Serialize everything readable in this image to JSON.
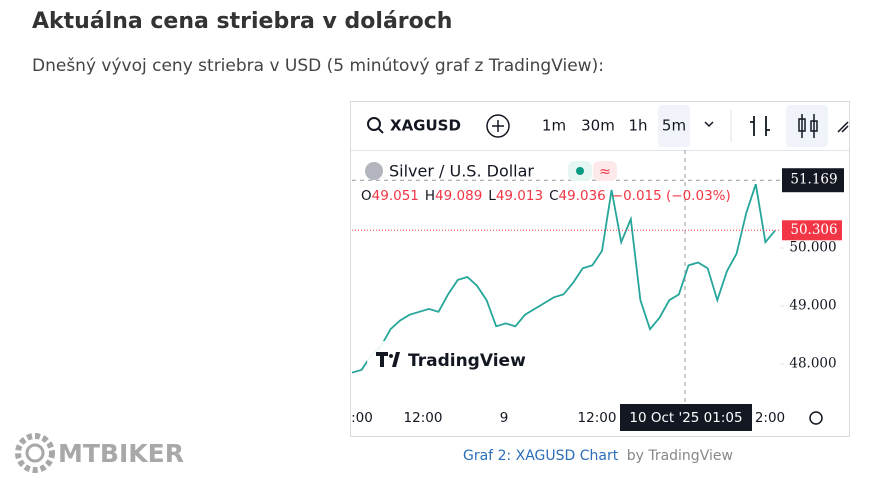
{
  "header": {
    "title": "Aktuálna cena striebra v dolároch",
    "subtitle": "Dnešný vývoj ceny striebra v USD (5 minútový graf z TradingView):"
  },
  "widget": {
    "symbol": "XAGUSD",
    "intervals": [
      "1m",
      "30m",
      "1h",
      "5m"
    ],
    "active_interval_index": 3,
    "legend_title": "Silver / U.S. Dollar",
    "legend_badge": "≈",
    "ohlc": [
      {
        "label": "O",
        "value": "49.051"
      },
      {
        "label": "H",
        "value": "49.089"
      },
      {
        "label": "L",
        "value": "49.013"
      },
      {
        "label": "C",
        "value": "49.036"
      }
    ],
    "change": "−0.015 (−0.03%)",
    "watermark": "TradingView"
  },
  "chart_data": {
    "type": "line",
    "color": "#26a69a",
    "values": [
      47.85,
      47.9,
      48.15,
      48.3,
      48.6,
      48.75,
      48.85,
      48.9,
      48.95,
      48.9,
      49.2,
      49.45,
      49.5,
      49.35,
      49.1,
      48.65,
      48.7,
      48.65,
      48.85,
      48.95,
      49.05,
      49.15,
      49.2,
      49.4,
      49.65,
      49.7,
      49.95,
      51.0,
      50.1,
      50.5,
      49.1,
      48.6,
      48.8,
      49.1,
      49.2,
      49.7,
      49.75,
      49.65,
      49.1,
      49.6,
      49.9,
      50.6,
      51.1,
      50.1,
      50.3
    ],
    "ylim": [
      47.38,
      51.69
    ],
    "yticks": [
      {
        "value": 48,
        "label": "48.000"
      },
      {
        "value": 49,
        "label": "49.000"
      },
      {
        "value": 50,
        "label": "50.000"
      }
    ],
    "x_labels": [
      ":00",
      "12:00",
      "9",
      "12:00",
      "2:00"
    ],
    "crosshair_time": "10 Oct '25  01:05",
    "crosshair_price": {
      "value": 51.169,
      "label": "51.169"
    },
    "last_price": {
      "value": 50.306,
      "label": "50.306"
    }
  },
  "caption": {
    "link": "Graf 2: XAGUSD Chart",
    "suffix": "by TradingView"
  },
  "brand": "MTBIKER"
}
